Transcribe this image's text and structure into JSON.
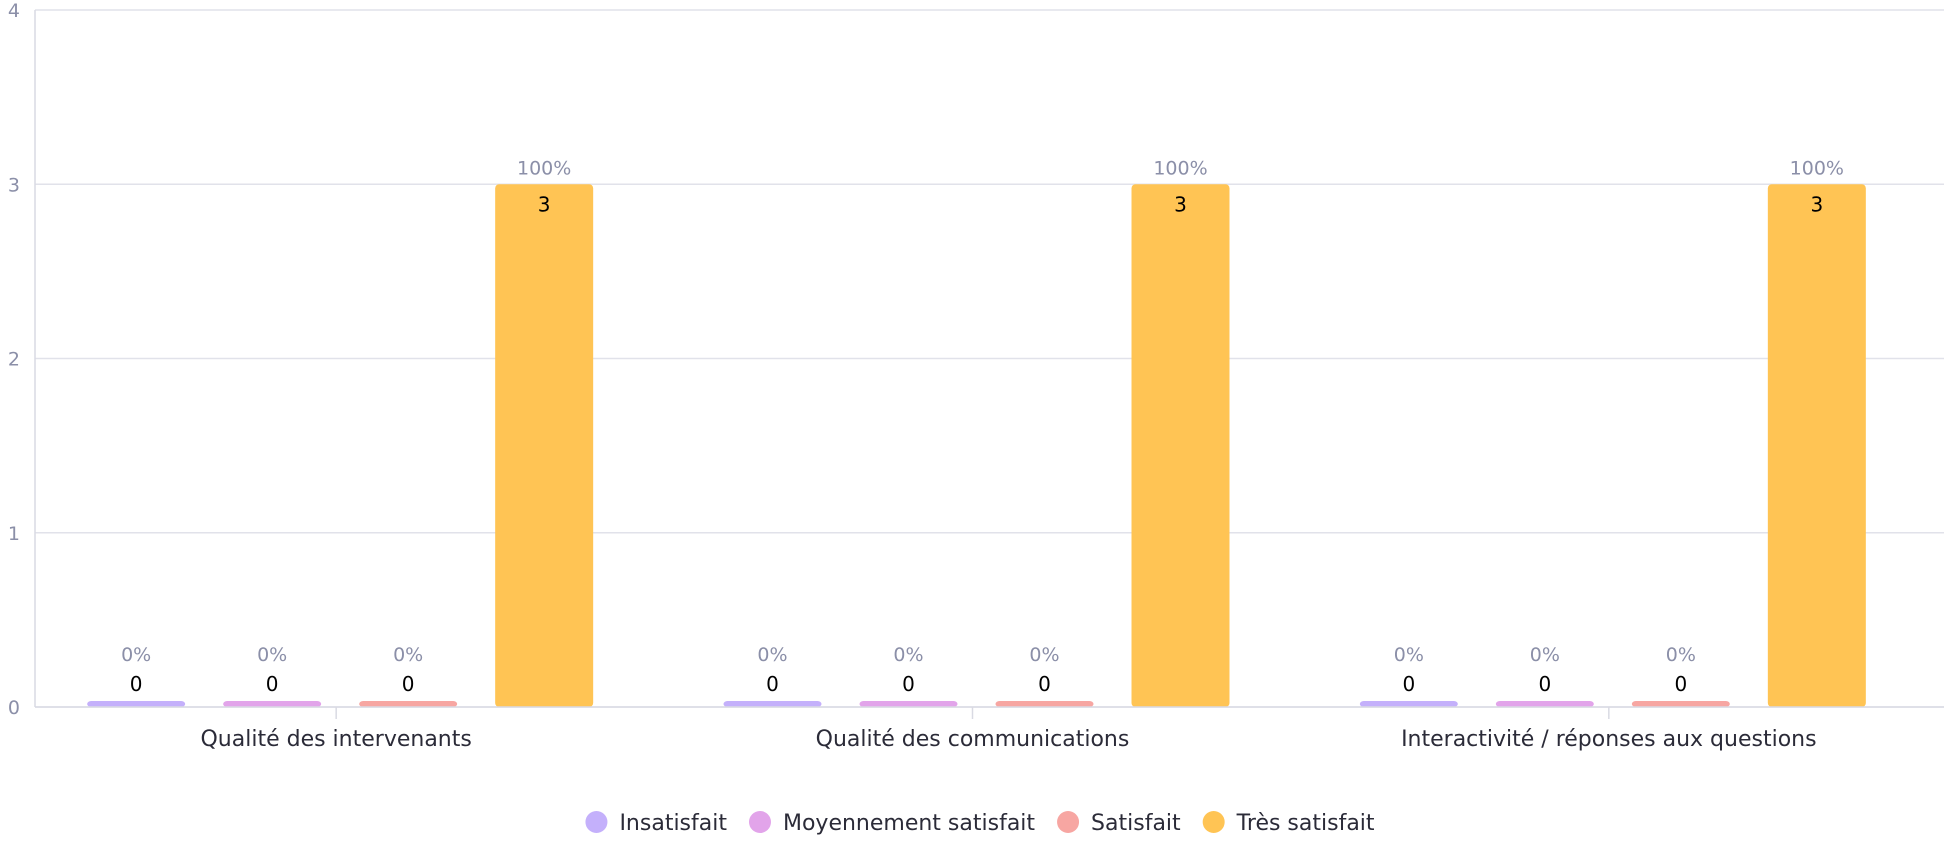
{
  "chart_data": {
    "type": "bar",
    "title": "",
    "xlabel": "",
    "ylabel": "",
    "ylim": [
      0,
      4
    ],
    "yticks": [
      0,
      1,
      2,
      3,
      4
    ],
    "grid": true,
    "legend_position": "bottom-center",
    "categories": [
      "Qualité des intervenants",
      "Qualité des communications",
      "Interactivité / réponses aux questions"
    ],
    "series": [
      {
        "name": "Insatisfait",
        "color": "#c4b0fb",
        "values": [
          0,
          0,
          0
        ],
        "percent_labels": [
          "0%",
          "0%",
          "0%"
        ]
      },
      {
        "name": "Moyennement satisfait",
        "color": "#e2a4ea",
        "values": [
          0,
          0,
          0
        ],
        "percent_labels": [
          "0%",
          "0%",
          "0%"
        ]
      },
      {
        "name": "Satisfait",
        "color": "#f7a6a2",
        "values": [
          0,
          0,
          0
        ],
        "percent_labels": [
          "0%",
          "0%",
          "0%"
        ]
      },
      {
        "name": "Très satisfait",
        "color": "#ffc454",
        "values": [
          3,
          3,
          3
        ],
        "percent_labels": [
          "100%",
          "100%",
          "100%"
        ]
      }
    ]
  }
}
